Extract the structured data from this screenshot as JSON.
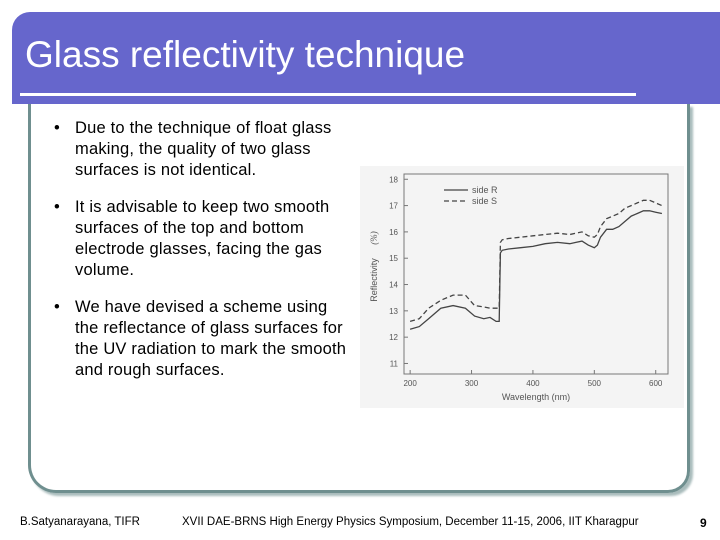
{
  "slide": {
    "title": "Glass reflectivity technique",
    "bullets": [
      "Due to the technique of float glass making, the quality of two glass surfaces is not identical.",
      "It is advisable to keep two smooth surfaces of the top and bottom electrode glasses, facing the gas volume.",
      "We have devised a scheme using the reflectance of glass surfaces for the UV radiation to mark the smooth and rough surfaces."
    ],
    "bullet_glyph": "•",
    "footer_author": "B.Satyanarayana, TIFR",
    "footer_event": "XVII DAE-BRNS High Energy Physics Symposium, December 11-15, 2006, IIT Kharagpur",
    "page_number": "9"
  },
  "colors": {
    "title_bar": "#6666cc",
    "frame": "#6f8f8f"
  },
  "chart_data": {
    "type": "line",
    "title": "",
    "xlabel": "Wavelength (nm)",
    "ylabel": "Reflectivity",
    "ylabel_unit": "(%)",
    "xlim": [
      190,
      620
    ],
    "ylim": [
      10.6,
      18.2
    ],
    "x_ticks": [
      200,
      300,
      400,
      500,
      600
    ],
    "y_ticks": [
      11,
      12,
      13,
      14,
      15,
      16,
      17,
      18
    ],
    "grid": false,
    "legend_position": "top-right",
    "series": [
      {
        "name": "side R",
        "style": "solid",
        "x": [
          200,
          215,
          230,
          250,
          270,
          290,
          305,
          320,
          330,
          340,
          345,
          347,
          350,
          360,
          380,
          400,
          420,
          440,
          460,
          470,
          480,
          490,
          500,
          505,
          510,
          520,
          530,
          540,
          550,
          560,
          570,
          580,
          590,
          600,
          610
        ],
        "y": [
          12.3,
          12.4,
          12.7,
          13.1,
          13.2,
          13.1,
          12.8,
          12.7,
          12.75,
          12.6,
          12.6,
          15.2,
          15.3,
          15.35,
          15.4,
          15.45,
          15.55,
          15.6,
          15.55,
          15.6,
          15.65,
          15.5,
          15.4,
          15.5,
          15.8,
          16.1,
          16.1,
          16.2,
          16.4,
          16.6,
          16.7,
          16.8,
          16.8,
          16.75,
          16.7
        ]
      },
      {
        "name": "side S",
        "style": "dashed",
        "x": [
          200,
          215,
          230,
          250,
          270,
          290,
          305,
          320,
          330,
          340,
          345,
          347,
          350,
          360,
          380,
          400,
          420,
          440,
          460,
          470,
          480,
          490,
          500,
          505,
          510,
          520,
          530,
          540,
          550,
          560,
          570,
          580,
          590,
          600,
          610
        ],
        "y": [
          12.6,
          12.7,
          13.1,
          13.4,
          13.6,
          13.6,
          13.2,
          13.15,
          13.1,
          13.1,
          13.1,
          15.6,
          15.7,
          15.75,
          15.8,
          15.85,
          15.9,
          15.95,
          15.9,
          15.95,
          16.0,
          15.85,
          15.8,
          15.9,
          16.2,
          16.5,
          16.6,
          16.7,
          16.9,
          17.0,
          17.1,
          17.2,
          17.2,
          17.1,
          17.0
        ]
      }
    ]
  }
}
